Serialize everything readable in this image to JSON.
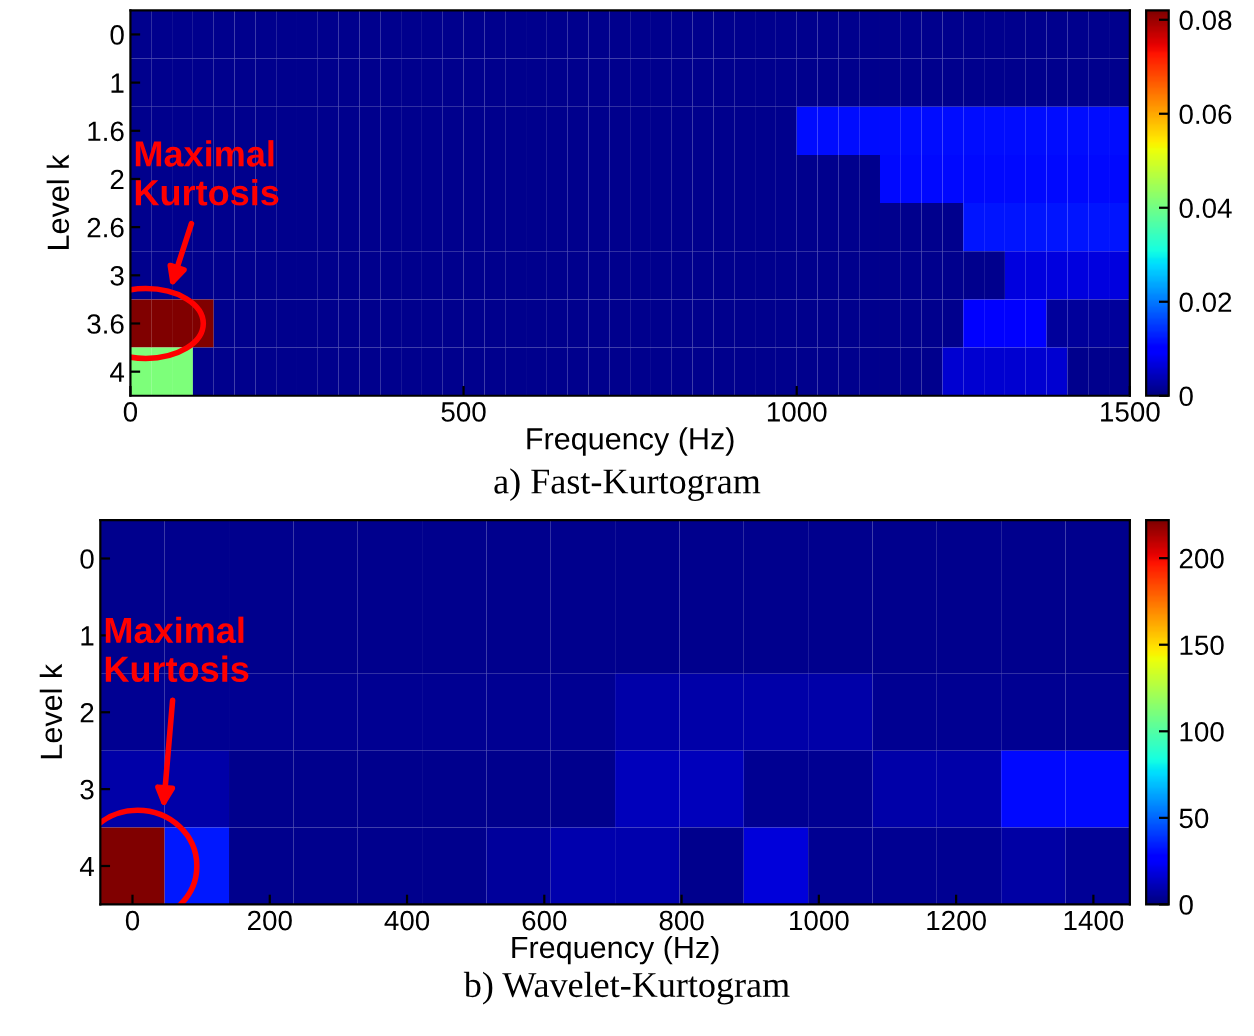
{
  "chart_data": [
    {
      "type": "heatmap",
      "title": "a) Fast-Kurtogram",
      "xlabel": "Frequency (Hz)",
      "ylabel": "Level k",
      "x": [
        15.625,
        46.875,
        78.125,
        109.375,
        140.625,
        171.875,
        203.125,
        234.375,
        265.625,
        296.875,
        328.125,
        359.375,
        390.625,
        421.875,
        453.125,
        484.375,
        515.625,
        546.875,
        578.125,
        609.375,
        640.625,
        671.875,
        703.125,
        734.375,
        765.625,
        796.875,
        828.125,
        859.375,
        890.625,
        921.875,
        953.125,
        984.375,
        1015.625,
        1046.875,
        1078.125,
        1109.375,
        1140.625,
        1171.875,
        1203.125,
        1234.375,
        1265.625,
        1296.875,
        1328.125,
        1359.375,
        1390.625,
        1421.875,
        1453.125,
        1484.375
      ],
      "y_categories": [
        "0",
        "1",
        "1.6",
        "2",
        "2.6",
        "3",
        "3.6",
        "4"
      ],
      "cells": [
        [
          0.001,
          0.001,
          0.001,
          0.001,
          0.001,
          0.001,
          0.001,
          0.001,
          0.001,
          0.001,
          0.001,
          0.001,
          0.001,
          0.001,
          0.001,
          0.001,
          0.001,
          0.001,
          0.001,
          0.001,
          0.001,
          0.001,
          0.001,
          0.001,
          0.001,
          0.001,
          0.001,
          0.001,
          0.001,
          0.001,
          0.001,
          0.001,
          0.001,
          0.001,
          0.001,
          0.001,
          0.001,
          0.001,
          0.001,
          0.001,
          0.001,
          0.001,
          0.001,
          0.001,
          0.001,
          0.001,
          0.001,
          0.001
        ],
        [
          0.001,
          0.001,
          0.001,
          0.001,
          0.001,
          0.001,
          0.001,
          0.001,
          0.001,
          0.001,
          0.001,
          0.001,
          0.001,
          0.001,
          0.001,
          0.001,
          0.001,
          0.001,
          0.001,
          0.001,
          0.001,
          0.001,
          0.001,
          0.001,
          0.001,
          0.001,
          0.001,
          0.001,
          0.001,
          0.001,
          0.001,
          0.001,
          0.001,
          0.001,
          0.001,
          0.001,
          0.001,
          0.001,
          0.001,
          0.001,
          0.001,
          0.001,
          0.001,
          0.001,
          0.001,
          0.001,
          0.001,
          0.001
        ],
        [
          0.001,
          0.001,
          0.001,
          0.001,
          0.001,
          0.001,
          0.001,
          0.001,
          0.001,
          0.001,
          0.001,
          0.001,
          0.001,
          0.001,
          0.001,
          0.001,
          0.001,
          0.001,
          0.001,
          0.001,
          0.001,
          0.001,
          0.001,
          0.001,
          0.001,
          0.001,
          0.001,
          0.001,
          0.001,
          0.001,
          0.001,
          0.001,
          0.0115,
          0.0115,
          0.0115,
          0.0115,
          0.0115,
          0.0115,
          0.0115,
          0.0115,
          0.0115,
          0.0115,
          0.0115,
          0.0115,
          0.0115,
          0.0115,
          0.0115,
          0.0115
        ],
        [
          0.001,
          0.001,
          0.001,
          0.001,
          0.001,
          0.001,
          0.001,
          0.001,
          0.001,
          0.001,
          0.001,
          0.001,
          0.001,
          0.001,
          0.001,
          0.001,
          0.001,
          0.001,
          0.001,
          0.001,
          0.001,
          0.001,
          0.001,
          0.001,
          0.001,
          0.001,
          0.001,
          0.001,
          0.001,
          0.001,
          0.001,
          0.001,
          0.001,
          0.001,
          0.001,
          0.001,
          0.011,
          0.011,
          0.011,
          0.011,
          0.011,
          0.011,
          0.011,
          0.011,
          0.011,
          0.011,
          0.011,
          0.011
        ],
        [
          0.001,
          0.001,
          0.001,
          0.001,
          0.001,
          0.001,
          0.001,
          0.001,
          0.001,
          0.001,
          0.001,
          0.001,
          0.001,
          0.001,
          0.001,
          0.001,
          0.001,
          0.001,
          0.001,
          0.001,
          0.001,
          0.001,
          0.001,
          0.001,
          0.001,
          0.001,
          0.001,
          0.001,
          0.001,
          0.001,
          0.001,
          0.001,
          0.001,
          0.001,
          0.001,
          0.001,
          0.001,
          0.001,
          0.001,
          0.001,
          0.012,
          0.012,
          0.012,
          0.012,
          0.012,
          0.012,
          0.012,
          0.012
        ],
        [
          0.001,
          0.001,
          0.001,
          0.001,
          0.001,
          0.001,
          0.001,
          0.001,
          0.001,
          0.001,
          0.001,
          0.001,
          0.001,
          0.001,
          0.001,
          0.001,
          0.001,
          0.001,
          0.001,
          0.001,
          0.001,
          0.001,
          0.001,
          0.001,
          0.001,
          0.001,
          0.001,
          0.001,
          0.001,
          0.001,
          0.001,
          0.001,
          0.001,
          0.001,
          0.001,
          0.001,
          0.001,
          0.001,
          0.001,
          0.001,
          0.001,
          0.001,
          0.007,
          0.007,
          0.007,
          0.007,
          0.007,
          0.007
        ],
        [
          0.082,
          0.082,
          0.082,
          0.082,
          0.001,
          0.001,
          0.001,
          0.001,
          0.001,
          0.001,
          0.001,
          0.001,
          0.001,
          0.001,
          0.001,
          0.001,
          0.001,
          0.001,
          0.001,
          0.001,
          0.001,
          0.001,
          0.001,
          0.001,
          0.001,
          0.001,
          0.001,
          0.001,
          0.001,
          0.001,
          0.001,
          0.001,
          0.001,
          0.001,
          0.001,
          0.001,
          0.001,
          0.001,
          0.001,
          0.001,
          0.009,
          0.009,
          0.009,
          0.009,
          0.002,
          0.002,
          0.002,
          0.002
        ],
        [
          0.041,
          0.041,
          0.041,
          0.001,
          0.001,
          0.001,
          0.001,
          0.001,
          0.001,
          0.001,
          0.001,
          0.001,
          0.001,
          0.001,
          0.001,
          0.001,
          0.001,
          0.001,
          0.001,
          0.001,
          0.001,
          0.001,
          0.001,
          0.001,
          0.001,
          0.001,
          0.001,
          0.001,
          0.001,
          0.001,
          0.001,
          0.001,
          0.001,
          0.001,
          0.001,
          0.001,
          0.001,
          0.001,
          0.001,
          0.006,
          0.006,
          0.006,
          0.006,
          0.006,
          0.006,
          0.001,
          0.001,
          0.001
        ]
      ],
      "xlim": [
        0,
        1500
      ],
      "xticks": [
        0,
        500,
        1000,
        1500
      ],
      "clim": [
        0,
        0.082
      ],
      "cticks": [
        0,
        0.02,
        0.04,
        0.06,
        0.08
      ],
      "annotations": [
        "Maximal\nKurtosis"
      ]
    },
    {
      "type": "heatmap",
      "title": "b) Wavelet-Kurtogram",
      "xlabel": "Frequency (Hz)",
      "ylabel": "Level k",
      "x": [
        0,
        93.75,
        187.5,
        281.25,
        375,
        468.75,
        562.5,
        656.25,
        750,
        843.75,
        937.5,
        1031.25,
        1125,
        1218.75,
        1312.5,
        1406.25
      ],
      "y_categories": [
        "0",
        "1",
        "2",
        "3",
        "4"
      ],
      "cells": [
        [
          3,
          3,
          3,
          3,
          3,
          3,
          3,
          3,
          3,
          3,
          3,
          3,
          3,
          3,
          3,
          3
        ],
        [
          3,
          3,
          3,
          3,
          3,
          3,
          3,
          3,
          3,
          3,
          3,
          3,
          3,
          3,
          3,
          3
        ],
        [
          4,
          4,
          4,
          4,
          4,
          4,
          4,
          4,
          8,
          8,
          8,
          8,
          4,
          4,
          4,
          4
        ],
        [
          8,
          8,
          3,
          3,
          3,
          3,
          3,
          3,
          12,
          12,
          4,
          4,
          8,
          8,
          30,
          30
        ],
        [
          222,
          33,
          3,
          3,
          3,
          3,
          6,
          9,
          9,
          3,
          18,
          4,
          4,
          4,
          7,
          5
        ]
      ],
      "xlim": [
        -46.875,
        1453.125
      ],
      "xticks": [
        0,
        200,
        400,
        600,
        800,
        1000,
        1200,
        1400
      ],
      "clim": [
        0,
        222
      ],
      "cticks": [
        0,
        50,
        100,
        150,
        200
      ],
      "annotations": [
        "Maximal\nKurtosis"
      ]
    }
  ]
}
